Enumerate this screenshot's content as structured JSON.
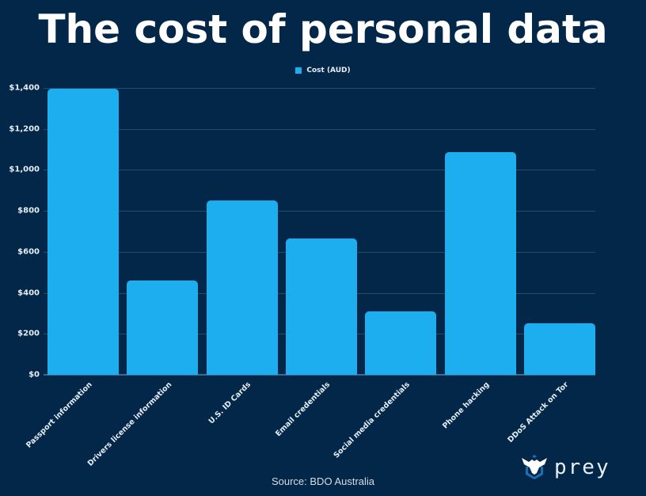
{
  "title": "The cost of personal data",
  "legend": {
    "label": "Cost (AUD)",
    "color": "#1caeee"
  },
  "source": "Source: BDO Australia",
  "logo": {
    "icon": "prey-eagle-shield-icon",
    "text": "prey"
  },
  "colors": {
    "background": "#022748",
    "bar": "#1caeee",
    "grid": "#2a4a68"
  },
  "y_ticks": [
    "$0",
    "$200",
    "$400",
    "$600",
    "$800",
    "$1,000",
    "$1,200",
    "$1,400"
  ],
  "chart_data": {
    "type": "bar",
    "title": "The cost of personal data",
    "xlabel": "",
    "ylabel": "",
    "ylim": [
      0,
      1400
    ],
    "grid": true,
    "legend_position": "top-center",
    "categories": [
      "Passport information",
      "Drivers license information",
      "U.S. ID Cards",
      "Email credentials",
      "Social media credentials",
      "Phone hacking",
      "DDoS Attack on Tor"
    ],
    "series": [
      {
        "name": "Cost (AUD)",
        "values": [
          1395,
          460,
          850,
          665,
          310,
          1085,
          250
        ]
      }
    ],
    "y_tick_labels": [
      "$0",
      "$200",
      "$400",
      "$600",
      "$800",
      "$1,000",
      "$1,200",
      "$1,400"
    ],
    "annotations": [
      "Source: BDO Australia"
    ]
  }
}
